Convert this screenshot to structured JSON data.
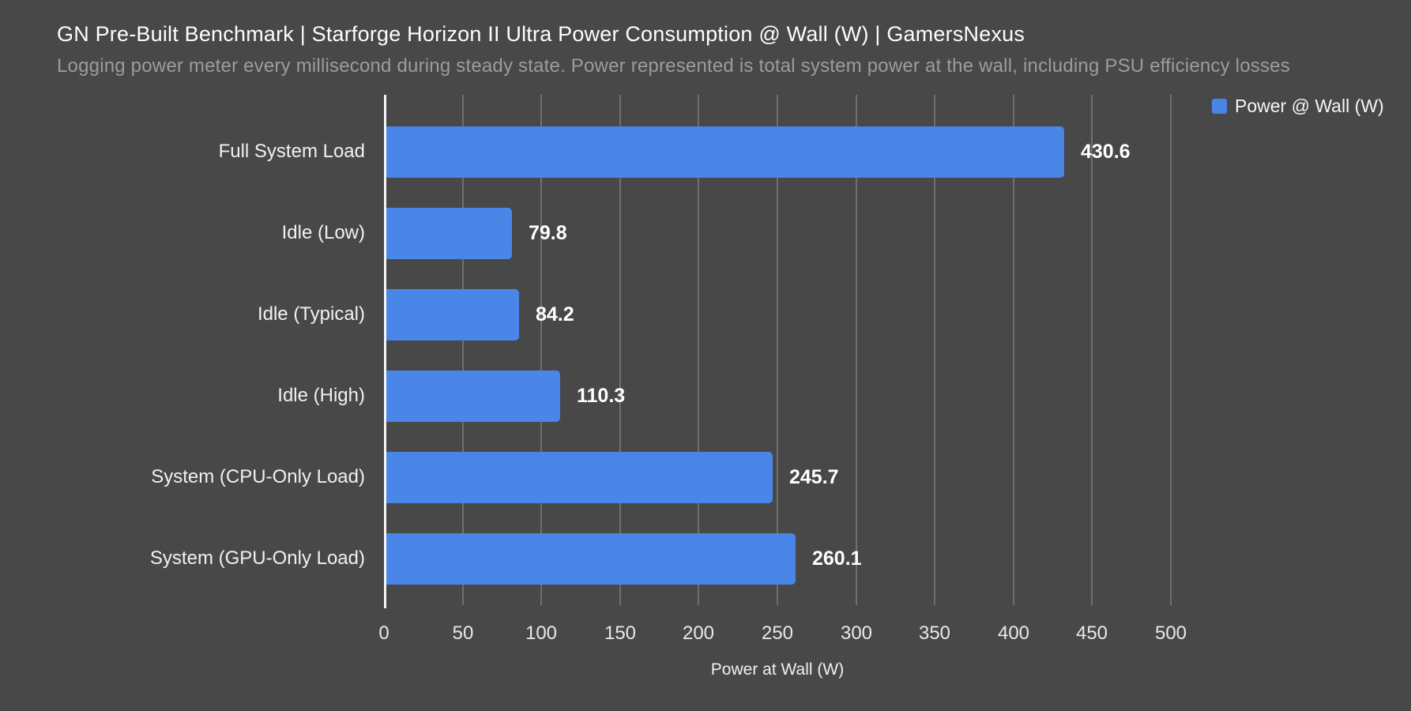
{
  "header": {
    "title": "GN Pre-Built Benchmark | Starforge Horizon II Ultra Power Consumption @ Wall (W) | GamersNexus",
    "subtitle": "Logging power meter every millisecond during steady state. Power represented is total system power at the wall, including PSU efficiency losses"
  },
  "legend": {
    "label": "Power @ Wall (W)",
    "swatch_color": "#4a86e8"
  },
  "chart_data": {
    "type": "bar",
    "orientation": "horizontal",
    "title": "GN Pre-Built Benchmark | Starforge Horizon II Ultra Power Consumption @ Wall (W) | GamersNexus",
    "subtitle": "Logging power meter every millisecond during steady state. Power represented is total system power at the wall, including PSU efficiency losses",
    "series_name": "Power @ Wall (W)",
    "categories": [
      "Full System Load",
      "Idle (Low)",
      "Idle (Typical)",
      "Idle (High)",
      "System (CPU-Only Load)",
      "System (GPU-Only Load)"
    ],
    "values": [
      430.6,
      79.8,
      84.2,
      110.3,
      245.7,
      260.1
    ],
    "value_labels": [
      "430.6",
      "79.8",
      "84.2",
      "110.3",
      "245.7",
      "260.1"
    ],
    "xlabel": "Power at Wall (W)",
    "ylabel": "",
    "xlim": [
      0,
      500
    ],
    "xticks": [
      0,
      50,
      100,
      150,
      200,
      250,
      300,
      350,
      400,
      450,
      500
    ],
    "grid": true,
    "legend_position": "top-right",
    "bar_color": "#4a86e8"
  },
  "colors": {
    "background": "#484848",
    "bar": "#4a86e8",
    "gridline": "#6f6f6f",
    "axis_line": "#f5f5f5",
    "title_text": "#fdfdfd",
    "subtitle_text": "#9c9c9c",
    "category_text": "#f1f1f1",
    "tick_text": "#e9e9e9",
    "value_text": "#ffffff"
  }
}
